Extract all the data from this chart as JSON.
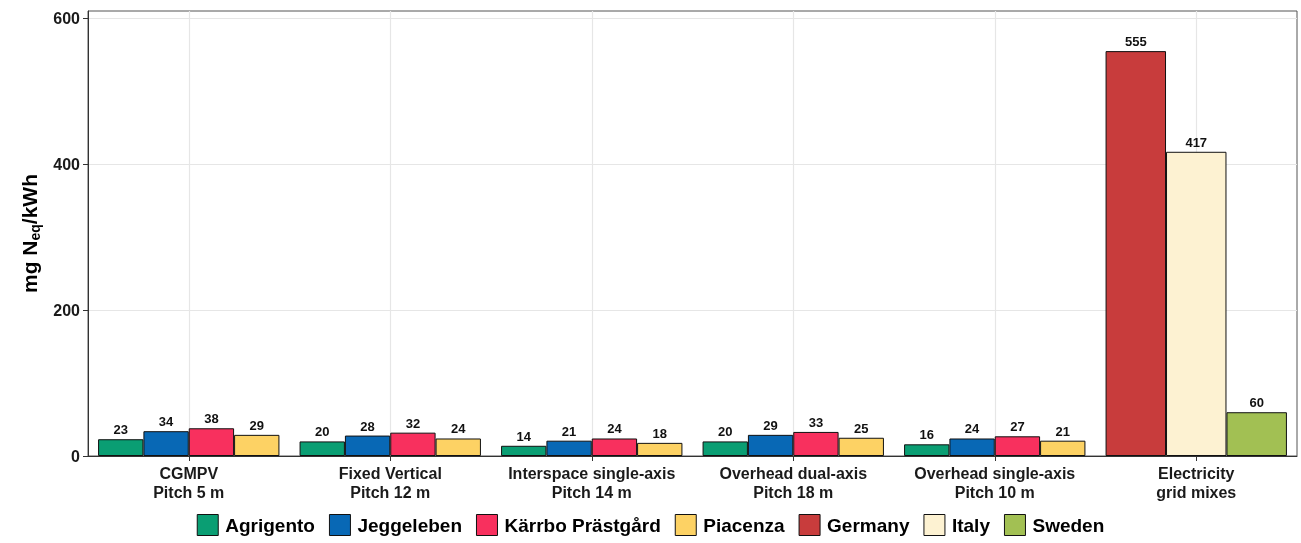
{
  "chart_data": {
    "type": "bar",
    "ylabel": "mg N$_{eq}$/kWh",
    "categories": [
      "CGMPV\nPitch 5 m",
      "Fixed Vertical\nPitch 12 m",
      "Interspace single-axis\nPitch 14 m",
      "Overhead dual-axis\nPitch 18 m",
      "Overhead single-axis\nPitch 10 m",
      "Electricity\ngrid mixes"
    ],
    "series": [
      {
        "name": "Agrigento",
        "color": "#0a9e73",
        "values": [
          23,
          20,
          14,
          20,
          16,
          null
        ]
      },
      {
        "name": "Jeggeleben",
        "color": "#0868b5",
        "values": [
          34,
          28,
          21,
          29,
          24,
          null
        ]
      },
      {
        "name": "Kärrbo Prästgård",
        "color": "#f8305e",
        "values": [
          38,
          32,
          24,
          33,
          27,
          null
        ]
      },
      {
        "name": "Piacenza",
        "color": "#fdd264",
        "values": [
          29,
          24,
          18,
          25,
          21,
          null
        ]
      },
      {
        "name": "Germany",
        "color": "#c83c3c",
        "values": [
          null,
          null,
          null,
          null,
          null,
          555
        ]
      },
      {
        "name": "Italy",
        "color": "#fdf2d2",
        "values": [
          null,
          null,
          null,
          null,
          null,
          417
        ]
      },
      {
        "name": "Sweden",
        "color": "#a2c053",
        "values": [
          null,
          null,
          null,
          null,
          null,
          60
        ]
      }
    ],
    "ylim": [
      0,
      610
    ],
    "yticks": [
      0,
      200,
      400,
      600
    ],
    "grid": true,
    "legend": "bottom",
    "data_labels": true
  }
}
